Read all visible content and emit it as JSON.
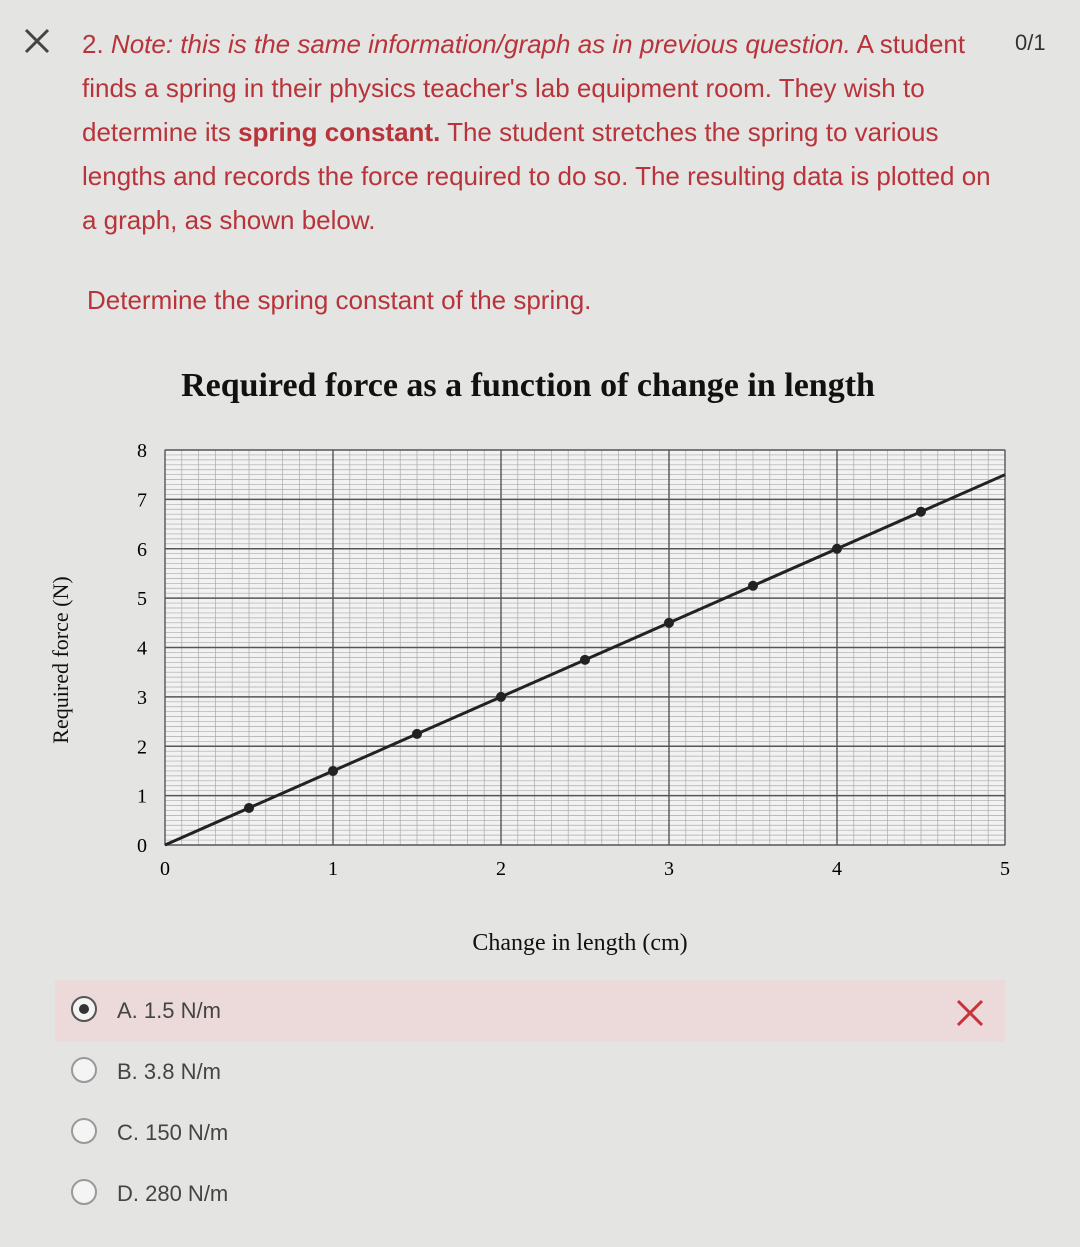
{
  "header": {
    "score": "0/1"
  },
  "question": {
    "number": "2.",
    "note": "Note: this is the same information/graph as in previous question.",
    "text_before": "A student finds a spring in their physics teacher's lab equipment room.  They wish to determine its",
    "bold": "spring constant.",
    "text_after": "The student stretches the spring to various lengths and records the force required to do so.  The resulting data is plotted on a graph, as shown below.",
    "prompt": "Determine the spring constant of the spring."
  },
  "chart_data": {
    "type": "line",
    "title": "Required force as a function of change in length",
    "x_label": "Change in length (cm)",
    "y_label": "Required force (N)",
    "line": {
      "x": [
        0,
        5
      ],
      "values": [
        0,
        7.5
      ]
    },
    "points": {
      "x": [
        0.5,
        1,
        1.5,
        2,
        2.5,
        3,
        3.5,
        4,
        4.5
      ],
      "values": [
        0.75,
        1.5,
        2.25,
        3,
        3.75,
        4.5,
        5.25,
        6,
        6.75
      ]
    },
    "color": "#222222",
    "xlim": [
      0,
      5
    ],
    "ylim": [
      0,
      8
    ],
    "xticks": [
      0,
      1,
      2,
      3,
      4,
      5
    ],
    "yticks": [
      0,
      1,
      2,
      3,
      4,
      5,
      6,
      7,
      8
    ],
    "grid": true
  },
  "options": [
    {
      "label": "A. 1.5 N/m",
      "selected": true,
      "incorrect": true
    },
    {
      "label": "B. 3.8 N/m",
      "selected": false,
      "incorrect": false
    },
    {
      "label": "C. 150 N/m",
      "selected": false,
      "incorrect": false
    },
    {
      "label": "D. 280 N/m",
      "selected": false,
      "incorrect": false
    }
  ]
}
